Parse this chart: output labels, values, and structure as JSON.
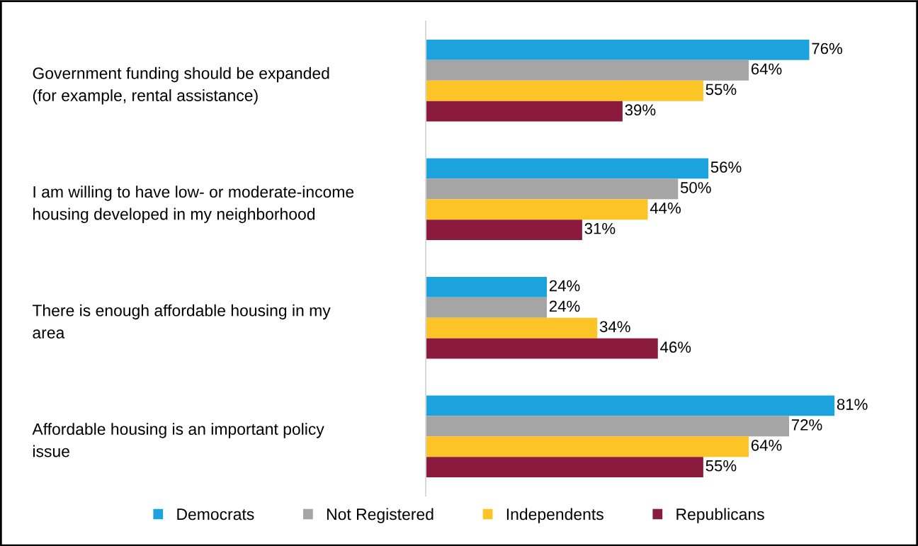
{
  "chart_data": {
    "type": "bar",
    "orientation": "horizontal",
    "categories": [
      "Government funding should be expanded\n(for example, rental assistance)",
      "I am willing to have low- or moderate-income\nhousing developed in my neighborhood",
      "There is enough affordable housing in my\narea",
      "Affordable housing is an important policy\nissue"
    ],
    "series": [
      {
        "name": "Democrats",
        "color": "#1ca3dd",
        "values": [
          76,
          56,
          24,
          81
        ],
        "value_labels": [
          "76%",
          "56%",
          "24%",
          "81%"
        ]
      },
      {
        "name": "Not Registered",
        "color": "#a5a5a5",
        "values": [
          64,
          50,
          24,
          72
        ],
        "value_labels": [
          "64%",
          "50%",
          "24%",
          "72%"
        ]
      },
      {
        "name": "Independents",
        "color": "#fdc427",
        "values": [
          55,
          44,
          34,
          64
        ],
        "value_labels": [
          "55%",
          "44%",
          "34%",
          "64%"
        ]
      },
      {
        "name": "Republicans",
        "color": "#8b1a3f",
        "values": [
          39,
          31,
          46,
          55
        ],
        "value_labels": [
          "39%",
          "31%",
          "46%",
          "55%"
        ]
      }
    ],
    "tick_labels": "y",
    "grid": false,
    "legend": "bottom"
  }
}
